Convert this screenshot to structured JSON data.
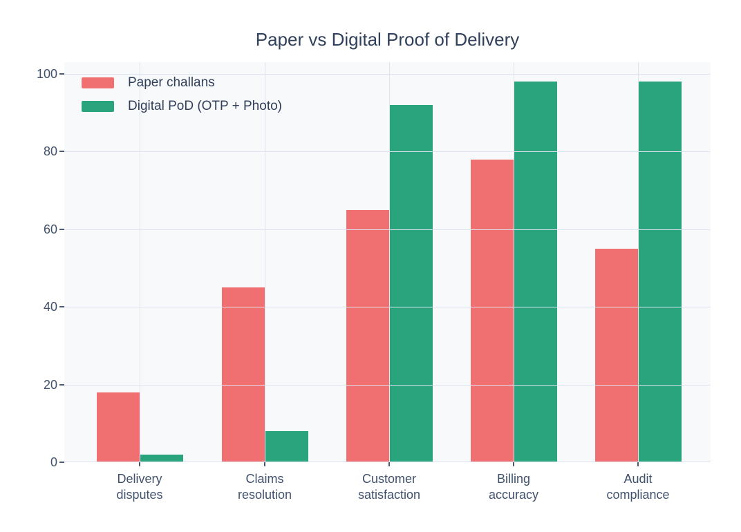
{
  "chart_data": {
    "type": "bar",
    "title": "Paper vs Digital Proof of Delivery",
    "categories": [
      "Delivery disputes",
      "Claims resolution",
      "Customer satisfaction",
      "Billing accuracy",
      "Audit compliance"
    ],
    "series": [
      {
        "name": "Paper challans",
        "color": "#f07072",
        "values": [
          18,
          45,
          65,
          78,
          55
        ]
      },
      {
        "name": "Digital PoD (OTP + Photo)",
        "color": "#2aa47d",
        "values": [
          2,
          8,
          92,
          98,
          98
        ]
      }
    ],
    "xlabel": "",
    "ylabel": "",
    "ylim": [
      0,
      103
    ],
    "yticks": [
      0,
      20,
      40,
      60,
      80,
      100
    ],
    "grid": true,
    "grid_layer": "above-bars",
    "legend_position": "top-left",
    "colors": {
      "plot_background": "#f8f9fb",
      "gridline": "#dde4f0",
      "title_text": "#31405a",
      "tick_text": "#42526b"
    }
  }
}
